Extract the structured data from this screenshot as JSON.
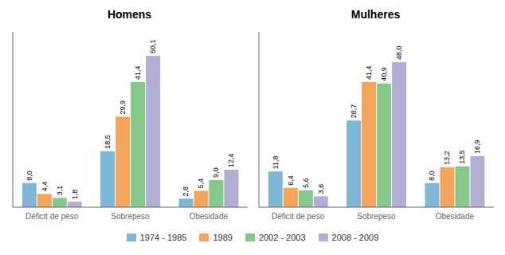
{
  "chart_data": [
    {
      "type": "bar",
      "title": "Homens",
      "categories": [
        "Déficit de peso",
        "Sobrepeso",
        "Obesidade"
      ],
      "series": [
        {
          "name": "1974 - 1985",
          "color": "#7db8d8",
          "values": [
            8.0,
            18.5,
            2.8
          ],
          "value_labels": [
            "8,0",
            "18,5",
            "2,8"
          ]
        },
        {
          "name": "1989",
          "color": "#f5a55a",
          "values": [
            4.4,
            29.9,
            5.4
          ],
          "value_labels": [
            "4,4",
            "29,9",
            "5,4"
          ]
        },
        {
          "name": "2002 - 2003",
          "color": "#85c98a",
          "values": [
            3.1,
            41.4,
            9.0
          ],
          "value_labels": [
            "3,1",
            "41,4",
            "9,0"
          ]
        },
        {
          "name": "2008 - 2009",
          "color": "#b3aed4",
          "values": [
            1.8,
            50.1,
            12.4
          ],
          "value_labels": [
            "1,8",
            "50,1",
            "12,4"
          ]
        }
      ],
      "ylim": [
        0,
        58
      ],
      "data_labels": true,
      "tick_labels": "x",
      "grid": false,
      "legend": "bottom"
    },
    {
      "type": "bar",
      "title": "Mulheres",
      "categories": [
        "Déficit de peso",
        "Sobrepeso",
        "Obesidade"
      ],
      "series": [
        {
          "name": "1974 - 1985",
          "color": "#7db8d8",
          "values": [
            11.8,
            28.7,
            8.0
          ],
          "value_labels": [
            "11,8",
            "28,7",
            "8,0"
          ]
        },
        {
          "name": "1989",
          "color": "#f5a55a",
          "values": [
            6.4,
            41.4,
            13.2
          ],
          "value_labels": [
            "6,4",
            "41,4",
            "13,2"
          ]
        },
        {
          "name": "2002 - 2003",
          "color": "#85c98a",
          "values": [
            5.6,
            40.9,
            13.5
          ],
          "value_labels": [
            "5,6",
            "40,9",
            "13,5"
          ]
        },
        {
          "name": "2008 - 2009",
          "color": "#b3aed4",
          "values": [
            3.6,
            48.0,
            16.9
          ],
          "value_labels": [
            "3,6",
            "48,0",
            "16,9"
          ]
        }
      ],
      "ylim": [
        0,
        58
      ],
      "data_labels": true,
      "tick_labels": "x",
      "grid": false,
      "legend": "bottom"
    }
  ]
}
